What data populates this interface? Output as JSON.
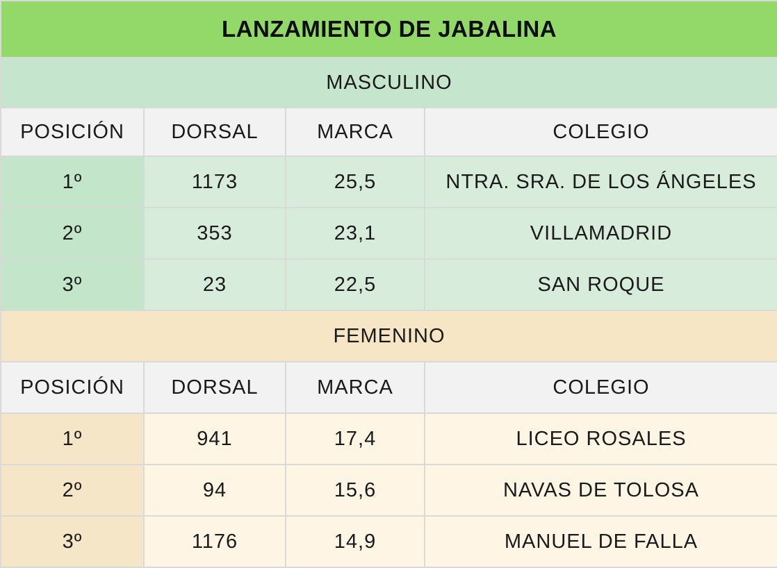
{
  "title": "LANZAMIENTO DE JABALINA",
  "columns": [
    "POSICIÓN",
    "DORSAL",
    "MARCA",
    "COLEGIO"
  ],
  "sections": [
    {
      "name": "MASCULINO",
      "rows": [
        {
          "posicion": "1º",
          "dorsal": "1173",
          "marca": "25,5",
          "colegio": "NTRA. SRA. DE LOS ÁNGELES"
        },
        {
          "posicion": "2º",
          "dorsal": "353",
          "marca": "23,1",
          "colegio": "VILLAMADRID"
        },
        {
          "posicion": "3º",
          "dorsal": "23",
          "marca": "22,5",
          "colegio": "SAN ROQUE"
        }
      ]
    },
    {
      "name": "FEMENINO",
      "rows": [
        {
          "posicion": "1º",
          "dorsal": "941",
          "marca": "17,4",
          "colegio": "LICEO ROSALES"
        },
        {
          "posicion": "2º",
          "dorsal": "94",
          "marca": "15,6",
          "colegio": "NAVAS DE TOLOSA"
        },
        {
          "posicion": "3º",
          "dorsal": "1176",
          "marca": "14,9",
          "colegio": "MANUEL DE FALLA"
        }
      ]
    }
  ],
  "colors": {
    "title_bg": "#93d96a",
    "masculino_section_bg": "#c5e6cc",
    "masculino_row_bg": "#d8ecdc",
    "femenino_section_bg": "#f6e6c6",
    "femenino_row_bg": "#fef5e5",
    "header_bg": "#f2f2f2",
    "border": "#d9d9d9"
  }
}
